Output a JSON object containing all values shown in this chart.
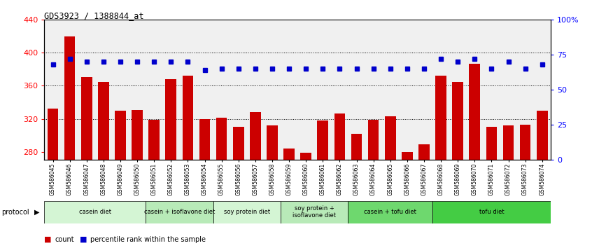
{
  "title": "GDS3923 / 1388844_at",
  "samples": [
    "GSM586045",
    "GSM586046",
    "GSM586047",
    "GSM586048",
    "GSM586049",
    "GSM586050",
    "GSM586051",
    "GSM586052",
    "GSM586053",
    "GSM586054",
    "GSM586055",
    "GSM586056",
    "GSM586057",
    "GSM586058",
    "GSM586059",
    "GSM586060",
    "GSM586061",
    "GSM586062",
    "GSM586063",
    "GSM586064",
    "GSM586065",
    "GSM586066",
    "GSM586067",
    "GSM586068",
    "GSM586069",
    "GSM586070",
    "GSM586071",
    "GSM586072",
    "GSM586073",
    "GSM586074"
  ],
  "counts": [
    332,
    420,
    371,
    365,
    330,
    331,
    319,
    368,
    372,
    320,
    321,
    310,
    328,
    312,
    284,
    279,
    318,
    326,
    302,
    319,
    323,
    280,
    289,
    372,
    365,
    387,
    310,
    312,
    313,
    330
  ],
  "percentile": [
    68,
    72,
    70,
    70,
    70,
    70,
    70,
    70,
    70,
    64,
    65,
    65,
    65,
    65,
    65,
    65,
    65,
    65,
    65,
    65,
    65,
    65,
    65,
    72,
    70,
    72,
    65,
    70,
    65,
    68
  ],
  "groups": [
    {
      "label": "casein diet",
      "start": 0,
      "end": 5,
      "color": "#d4f5d4"
    },
    {
      "label": "casein + isoflavone diet",
      "start": 6,
      "end": 9,
      "color": "#b8eab8"
    },
    {
      "label": "soy protein diet",
      "start": 10,
      "end": 13,
      "color": "#d4f5d4"
    },
    {
      "label": "soy protein +\nisoflavone diet",
      "start": 14,
      "end": 17,
      "color": "#b8eab8"
    },
    {
      "label": "casein + tofu diet",
      "start": 18,
      "end": 22,
      "color": "#6ed86e"
    },
    {
      "label": "tofu diet",
      "start": 23,
      "end": 29,
      "color": "#44cc44"
    }
  ],
  "bar_color": "#cc0000",
  "dot_color": "#0000cc",
  "ylim_left": [
    270,
    440
  ],
  "ylim_right": [
    0,
    100
  ],
  "yticks_left": [
    280,
    320,
    360,
    400,
    440
  ],
  "yticks_right": [
    0,
    25,
    50,
    75,
    100
  ],
  "grid_values": [
    320,
    360,
    400
  ],
  "bg_color": "#f0f0f0"
}
